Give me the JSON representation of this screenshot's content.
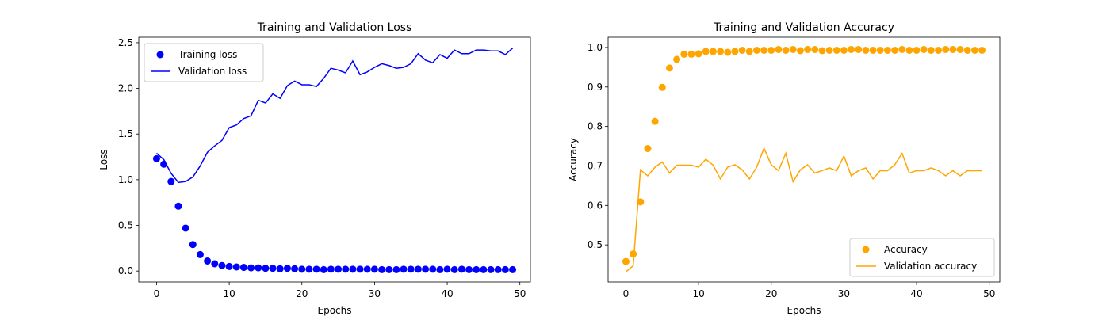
{
  "chart_data": [
    {
      "type": "scatter+line",
      "title": "Training and Validation Loss",
      "xlabel": "Epochs",
      "ylabel": "Loss",
      "xlim": [
        -2.45,
        51.45
      ],
      "ylim": [
        -0.12,
        2.56
      ],
      "xticks": [
        0,
        10,
        20,
        30,
        40,
        50
      ],
      "yticks": [
        0.0,
        0.5,
        1.0,
        1.5,
        2.0,
        2.5
      ],
      "ytick_labels": [
        "0.0",
        "0.5",
        "1.0",
        "1.5",
        "2.0",
        "2.5"
      ],
      "grid": false,
      "legend_position": "top-left",
      "x": [
        0,
        1,
        2,
        3,
        4,
        5,
        6,
        7,
        8,
        9,
        10,
        11,
        12,
        13,
        14,
        15,
        16,
        17,
        18,
        19,
        20,
        21,
        22,
        23,
        24,
        25,
        26,
        27,
        28,
        29,
        30,
        31,
        32,
        33,
        34,
        35,
        36,
        37,
        38,
        39,
        40,
        41,
        42,
        43,
        44,
        45,
        46,
        47,
        48,
        49
      ],
      "series": [
        {
          "name": "Training loss",
          "kind": "scatter",
          "color": "#0000ff",
          "values": [
            1.23,
            1.17,
            0.98,
            0.71,
            0.47,
            0.29,
            0.18,
            0.11,
            0.08,
            0.06,
            0.05,
            0.045,
            0.04,
            0.035,
            0.035,
            0.03,
            0.03,
            0.025,
            0.03,
            0.025,
            0.02,
            0.02,
            0.02,
            0.015,
            0.02,
            0.02,
            0.02,
            0.02,
            0.02,
            0.02,
            0.02,
            0.015,
            0.015,
            0.015,
            0.02,
            0.02,
            0.02,
            0.02,
            0.02,
            0.015,
            0.02,
            0.015,
            0.02,
            0.015,
            0.015,
            0.015,
            0.015,
            0.015,
            0.015,
            0.015
          ]
        },
        {
          "name": "Validation loss",
          "kind": "line",
          "color": "#0000ff",
          "values": [
            1.29,
            1.22,
            1.07,
            0.97,
            0.98,
            1.03,
            1.15,
            1.3,
            1.37,
            1.43,
            1.57,
            1.6,
            1.67,
            1.7,
            1.87,
            1.84,
            1.94,
            1.89,
            2.03,
            2.08,
            2.04,
            2.04,
            2.02,
            2.11,
            2.22,
            2.2,
            2.17,
            2.3,
            2.15,
            2.18,
            2.23,
            2.27,
            2.25,
            2.22,
            2.23,
            2.27,
            2.38,
            2.31,
            2.28,
            2.37,
            2.33,
            2.42,
            2.38,
            2.38,
            2.42,
            2.42,
            2.41,
            2.41,
            2.37,
            2.44
          ]
        }
      ]
    },
    {
      "type": "scatter+line",
      "title": "Training and Validation Accuracy",
      "xlabel": "Epochs",
      "ylabel": "Accuracy",
      "xlim": [
        -2.45,
        51.45
      ],
      "ylim": [
        0.406,
        1.026
      ],
      "xticks": [
        0,
        10,
        20,
        30,
        40,
        50
      ],
      "yticks": [
        0.5,
        0.6,
        0.7,
        0.8,
        0.9,
        1.0
      ],
      "ytick_labels": [
        "0.5",
        "0.6",
        "0.7",
        "0.8",
        "0.9",
        "1.0"
      ],
      "grid": false,
      "legend_position": "bottom-right",
      "x": [
        0,
        1,
        2,
        3,
        4,
        5,
        6,
        7,
        8,
        9,
        10,
        11,
        12,
        13,
        14,
        15,
        16,
        17,
        18,
        19,
        20,
        21,
        22,
        23,
        24,
        25,
        26,
        27,
        28,
        29,
        30,
        31,
        32,
        33,
        34,
        35,
        36,
        37,
        38,
        39,
        40,
        41,
        42,
        43,
        44,
        45,
        46,
        47,
        48,
        49
      ],
      "series": [
        {
          "name": "Accuracy",
          "kind": "scatter",
          "color": "#ffa500",
          "values": [
            0.458,
            0.477,
            0.609,
            0.744,
            0.813,
            0.899,
            0.948,
            0.97,
            0.983,
            0.983,
            0.984,
            0.99,
            0.99,
            0.99,
            0.988,
            0.99,
            0.993,
            0.99,
            0.993,
            0.993,
            0.993,
            0.995,
            0.993,
            0.995,
            0.992,
            0.995,
            0.995,
            0.992,
            0.993,
            0.993,
            0.993,
            0.995,
            0.995,
            0.993,
            0.993,
            0.993,
            0.993,
            0.993,
            0.995,
            0.993,
            0.993,
            0.995,
            0.993,
            0.993,
            0.995,
            0.995,
            0.995,
            0.993,
            0.993,
            0.993
          ]
        },
        {
          "name": "Validation accuracy",
          "kind": "line",
          "color": "#ffa500",
          "values": [
            0.432,
            0.447,
            0.69,
            0.675,
            0.697,
            0.71,
            0.682,
            0.702,
            0.702,
            0.702,
            0.697,
            0.717,
            0.702,
            0.667,
            0.697,
            0.703,
            0.69,
            0.667,
            0.697,
            0.745,
            0.703,
            0.688,
            0.732,
            0.66,
            0.69,
            0.703,
            0.682,
            0.688,
            0.695,
            0.688,
            0.725,
            0.675,
            0.688,
            0.695,
            0.667,
            0.688,
            0.688,
            0.703,
            0.732,
            0.682,
            0.688,
            0.688,
            0.695,
            0.688,
            0.675,
            0.688,
            0.675,
            0.688,
            0.688,
            0.688
          ]
        }
      ]
    }
  ]
}
